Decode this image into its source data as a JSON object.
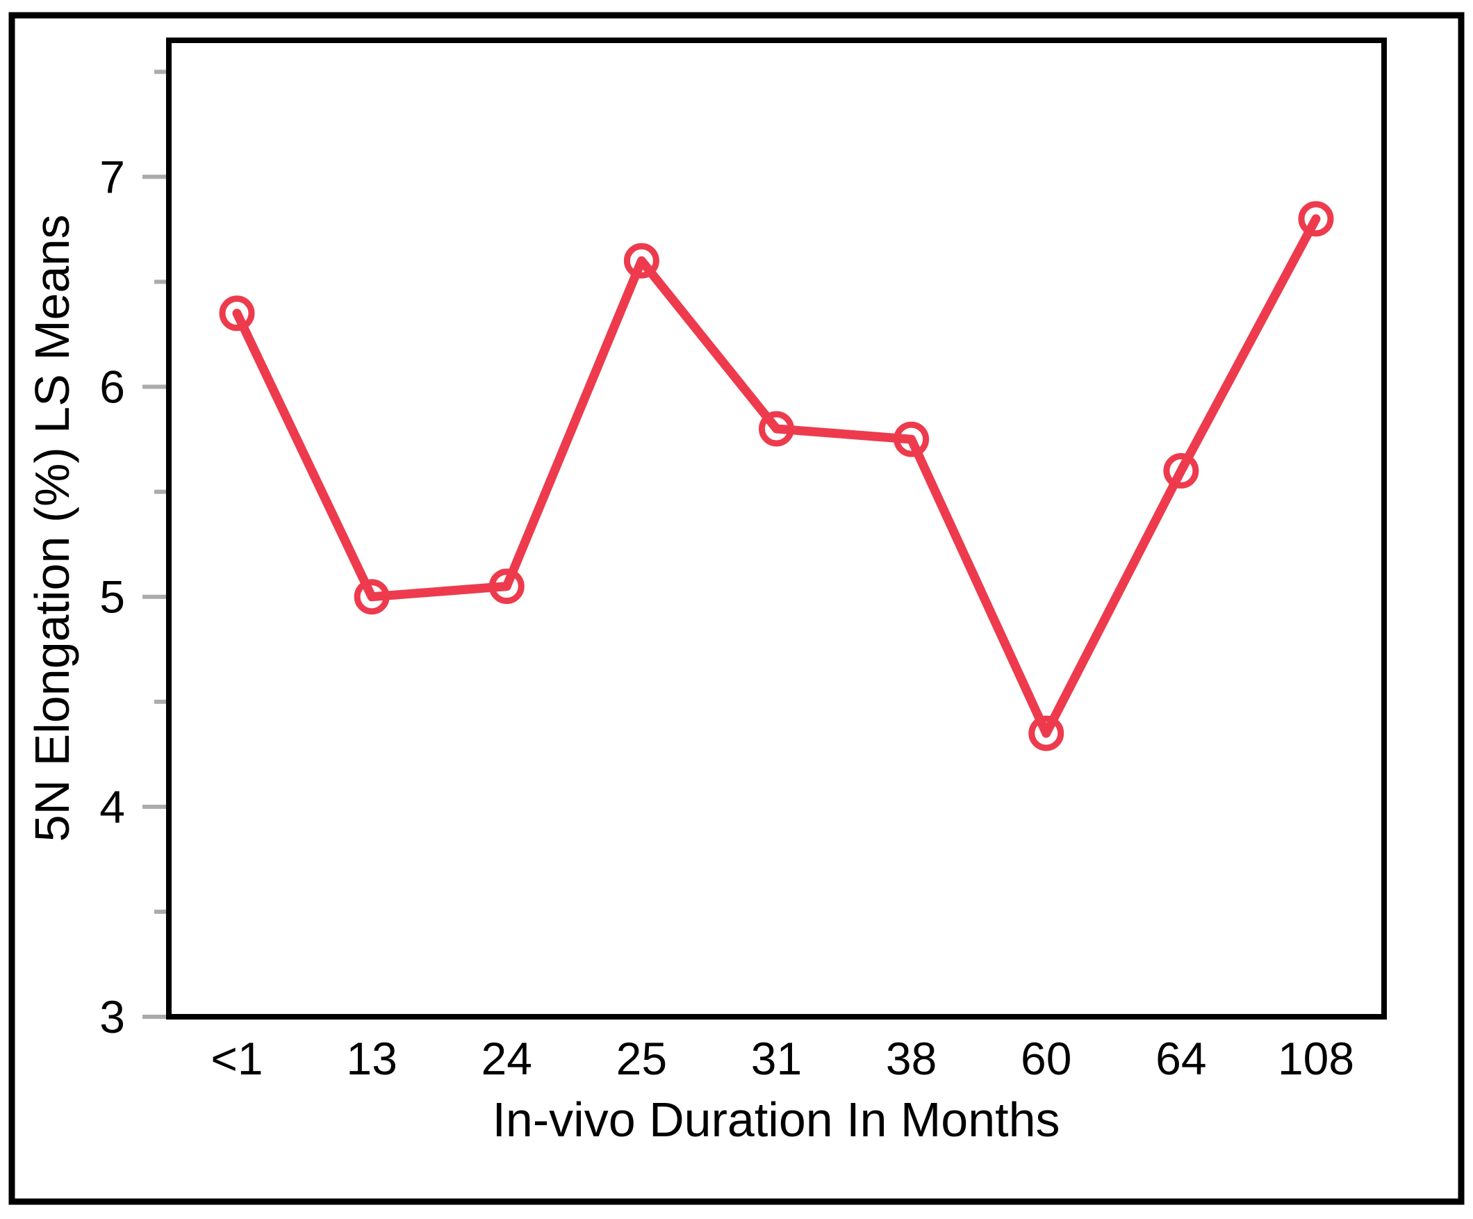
{
  "chart_data": {
    "type": "line",
    "title": "",
    "categories": [
      "<1",
      "13",
      "24",
      "25",
      "31",
      "38",
      "60",
      "64",
      "108"
    ],
    "values": [
      6.35,
      5.0,
      5.05,
      6.6,
      5.8,
      5.75,
      4.35,
      5.6,
      6.8
    ],
    "series": [
      {
        "name": "5N Elongation (%) LS Means",
        "values": [
          6.35,
          5.0,
          5.05,
          6.6,
          5.8,
          5.75,
          4.35,
          5.6,
          6.8
        ]
      }
    ],
    "xlabel": "In-vivo Duration In Months",
    "ylabel": "5N Elongation (%) LS Means",
    "ylim": [
      3,
      7.65
    ],
    "yticks_major": [
      3,
      4,
      5,
      6,
      7
    ],
    "yticks_minor": [
      3.5,
      4.5,
      5.5,
      6.5,
      7.5
    ],
    "ytick_labels": [
      "3",
      "4",
      "5",
      "6",
      "7"
    ],
    "grid": false,
    "legend": "none",
    "marker": "open-circle",
    "colors": {
      "line": "#ED3B4D",
      "marker": "#ED3B4D",
      "tick": "#ABABAB",
      "axis": "#000000",
      "border": "#000000",
      "background": "#FFFFFF",
      "text": "#000000"
    }
  }
}
